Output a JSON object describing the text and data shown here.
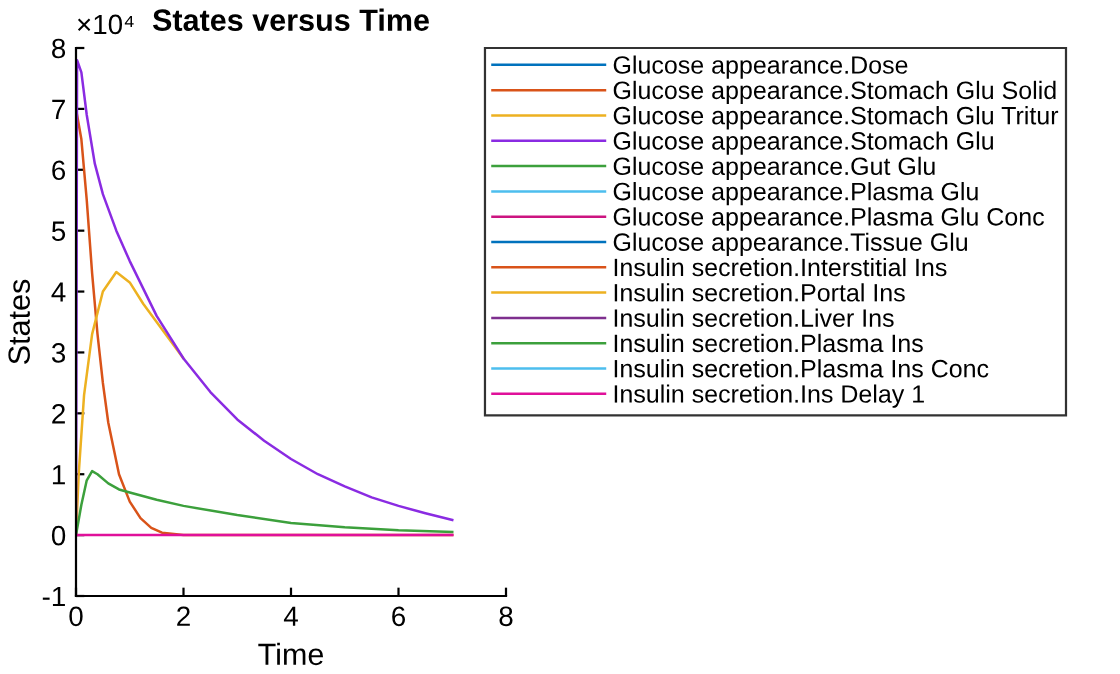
{
  "chart_data": {
    "type": "line",
    "title": "States versus Time",
    "xlabel": "Time",
    "ylabel": "States",
    "annotations": [
      "×10⁴"
    ],
    "xlim": [
      0,
      8
    ],
    "xticks": [
      0,
      2,
      4,
      6,
      8
    ],
    "ylim": [
      -1,
      8
    ],
    "yticks": [
      -1,
      0,
      1,
      2,
      3,
      4,
      5,
      6,
      7,
      8
    ],
    "grid": false,
    "legend": "top right",
    "marker": "none",
    "line_style": "solid",
    "series": [
      {
        "name": "Glucose appearance.Dose",
        "color": "#0072bd"
      },
      {
        "name": "Glucose appearance.Stomach Glu Solid",
        "color": "#d95319",
        "x": [
          0,
          0.1,
          0.2,
          0.3,
          0.4,
          0.5,
          0.6,
          0.8,
          1.0,
          1.2,
          1.4,
          1.6,
          2,
          7
        ],
        "values": [
          7.0,
          6.5,
          5.5,
          4.3,
          3.3,
          2.5,
          1.85,
          1.0,
          0.55,
          0.28,
          0.12,
          0.04,
          0,
          0
        ]
      },
      {
        "name": "Glucose appearance.Stomach Glu Tritur",
        "color": "#edb120",
        "x": [
          0,
          0.05,
          0.15,
          0.3,
          0.5,
          0.75,
          1.0,
          1.25,
          1.5,
          2
        ],
        "values": [
          0,
          1.0,
          2.3,
          3.3,
          4.0,
          4.32,
          4.15,
          3.8,
          3.5,
          2.9
        ]
      },
      {
        "name": "Glucose appearance.Stomach Glu",
        "color": "#8a2be2",
        "x": [
          0,
          0.02,
          0.1,
          0.2,
          0.35,
          0.5,
          0.75,
          1,
          1.5,
          2,
          2.5,
          3,
          3.5,
          4,
          4.5,
          5,
          5.5,
          6,
          6.5,
          7
        ],
        "values": [
          0,
          7.8,
          7.6,
          6.9,
          6.1,
          5.6,
          5.0,
          4.5,
          3.6,
          2.9,
          2.35,
          1.9,
          1.55,
          1.25,
          1.0,
          0.8,
          0.62,
          0.48,
          0.36,
          0.25
        ]
      },
      {
        "name": "Glucose appearance.Gut Glu",
        "color": "#3ca03c",
        "x": [
          0,
          0.1,
          0.2,
          0.3,
          0.4,
          0.6,
          0.8,
          1,
          1.5,
          2,
          3,
          4,
          5,
          6,
          7
        ],
        "values": [
          0,
          0.5,
          0.9,
          1.05,
          1.0,
          0.85,
          0.75,
          0.7,
          0.58,
          0.48,
          0.33,
          0.2,
          0.13,
          0.08,
          0.05
        ]
      },
      {
        "name": "Glucose appearance.Plasma Glu",
        "color": "#4dbeee"
      },
      {
        "name": "Glucose appearance.Plasma Glu Conc",
        "color": "#cc1480"
      },
      {
        "name": "Glucose appearance.Tissue Glu",
        "color": "#0072bd"
      },
      {
        "name": "Insulin secretion.Interstitial Ins",
        "color": "#d95319"
      },
      {
        "name": "Insulin secretion.Portal Ins",
        "color": "#edb120"
      },
      {
        "name": "Insulin secretion.Liver Ins",
        "color": "#7e2f8e"
      },
      {
        "name": "Insulin secretion.Plasma Ins",
        "color": "#3ca03c"
      },
      {
        "name": "Insulin secretion.Plasma Ins Conc",
        "color": "#4dbeee"
      },
      {
        "name": "Insulin secretion.Ins Delay 1",
        "color": "#e0109a",
        "x": [
          0,
          7
        ],
        "values": [
          0,
          0
        ]
      }
    ]
  }
}
